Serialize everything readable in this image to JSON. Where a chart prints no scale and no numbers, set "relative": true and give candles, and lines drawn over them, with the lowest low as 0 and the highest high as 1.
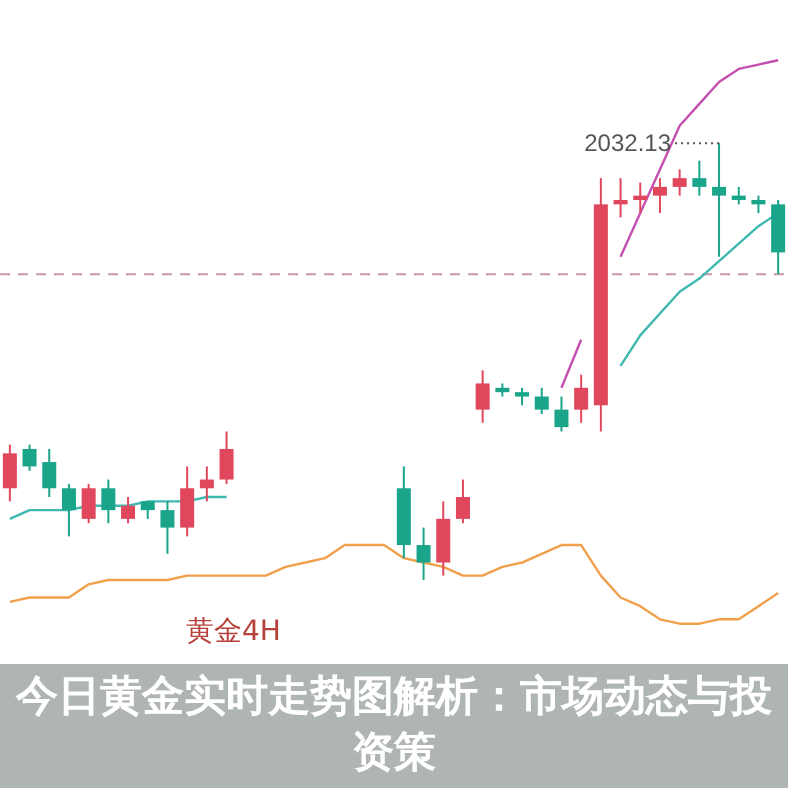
{
  "chart_data": {
    "type": "candlestick",
    "relative": true,
    "title": "今日黄金实时走势图解析：市场动态与投资策",
    "annotations": [
      "2032.13",
      "黄金4H"
    ],
    "categories": [
      null,
      null,
      null,
      null,
      null,
      null,
      null,
      null,
      null,
      null,
      null,
      null,
      null,
      null,
      null,
      null,
      null,
      null,
      null,
      null,
      null,
      null,
      null,
      null,
      null,
      null,
      null,
      null,
      null,
      null,
      null,
      null,
      null,
      null,
      null,
      null,
      null,
      null,
      null,
      null
    ],
    "ohlc": [
      [
        0.21,
        0.31,
        0.18,
        0.29
      ],
      [
        0.3,
        0.31,
        0.25,
        0.26
      ],
      [
        0.27,
        0.3,
        0.19,
        0.21
      ],
      [
        0.21,
        0.22,
        0.1,
        0.16
      ],
      [
        0.14,
        0.22,
        0.13,
        0.21
      ],
      [
        0.21,
        0.23,
        0.13,
        0.16
      ],
      [
        0.14,
        0.19,
        0.13,
        0.17
      ],
      [
        0.18,
        0.18,
        0.14,
        0.16
      ],
      [
        0.16,
        0.18,
        0.06,
        0.12
      ],
      [
        0.12,
        0.26,
        0.1,
        0.21
      ],
      [
        0.21,
        0.26,
        0.18,
        0.23
      ],
      [
        0.23,
        0.34,
        0.22,
        0.3
      ],
      null,
      null,
      null,
      null,
      null,
      null,
      null,
      null,
      [
        0.21,
        0.26,
        0.05,
        0.08
      ],
      [
        0.08,
        0.12,
        0,
        0.04
      ],
      [
        0.04,
        0.18,
        0.01,
        0.14
      ],
      [
        0.14,
        0.23,
        0.13,
        0.19
      ],
      [
        0.39,
        0.48,
        0.36,
        0.45
      ],
      [
        0.44,
        0.45,
        0.42,
        0.43
      ],
      [
        0.43,
        0.44,
        0.4,
        0.42
      ],
      [
        0.42,
        0.44,
        0.38,
        0.39
      ],
      [
        0.39,
        0.42,
        0.34,
        0.35
      ],
      [
        0.39,
        0.47,
        0.36,
        0.44
      ],
      [
        0.4,
        0.92,
        0.34,
        0.86
      ],
      [
        0.86,
        0.92,
        0.83,
        0.87
      ],
      [
        0.87,
        0.91,
        0.84,
        0.88
      ],
      [
        0.88,
        0.92,
        0.84,
        0.9
      ],
      [
        0.9,
        0.94,
        0.88,
        0.92
      ],
      [
        0.92,
        0.96,
        0.88,
        0.9
      ],
      [
        0.9,
        1,
        0.74,
        0.88
      ],
      [
        0.88,
        0.9,
        0.86,
        0.87
      ],
      [
        0.87,
        0.88,
        0.84,
        0.86
      ],
      [
        0.86,
        0.87,
        0.7,
        0.75
      ]
    ],
    "colors": [
      "#e0475c",
      "#1aa58a",
      "#1aa58a",
      "#1aa58a",
      "#e0475c",
      "#1aa58a",
      "#e0475c",
      "#1aa58a",
      "#1aa58a",
      "#e0475c",
      "#e0475c",
      "#e0475c",
      null,
      null,
      null,
      null,
      null,
      null,
      null,
      null,
      "#1aa58a",
      "#1aa58a",
      "#e0475c",
      "#e0475c",
      "#e0475c",
      "#1aa58a",
      "#1aa58a",
      "#1aa58a",
      "#1aa58a",
      "#e0475c",
      "#e0475c",
      "#e0475c",
      "#e0475c",
      "#e0475c",
      "#e0475c",
      "#1aa58a",
      "#1aa58a",
      "#1aa58a",
      "#1aa58a",
      "#1aa58a"
    ],
    "series": [
      {
        "type": "line",
        "color": "#f0a04b",
        "values": [
          -0.05,
          -0.04,
          -0.04,
          -0.04,
          -0.01,
          0,
          0,
          0,
          0,
          0.01,
          0.01,
          0.01,
          0.01,
          0.01,
          0.03,
          0.04,
          0.05,
          0.08,
          0.08,
          0.08,
          0.05,
          0.04,
          0.03,
          0.01,
          0.01,
          0.03,
          0.04,
          0.06,
          0.08,
          0.08,
          0.01,
          -0.04,
          -0.06,
          -0.09,
          -0.1,
          -0.1,
          -0.09,
          -0.09,
          -0.06,
          -0.03
        ]
      },
      {
        "type": "line",
        "color": "#c54fb0",
        "values": [
          null,
          null,
          null,
          null,
          null,
          null,
          null,
          null,
          null,
          null,
          null,
          null,
          null,
          null,
          null,
          null,
          null,
          null,
          null,
          null,
          null,
          null,
          null,
          null,
          null,
          null,
          null,
          null,
          0.44,
          0.55,
          null,
          0.74,
          0.84,
          0.94,
          1.04,
          1.09,
          1.14,
          1.17,
          1.18,
          1.19
        ]
      },
      {
        "type": "line",
        "color": "#3fb8b0",
        "values": [
          0.14,
          0.16,
          0.16,
          0.16,
          0.17,
          0.17,
          0.17,
          0.18,
          0.18,
          0.18,
          0.19,
          0.19,
          null,
          null,
          null,
          null,
          null,
          null,
          null,
          null,
          null,
          null,
          null,
          null,
          null,
          null,
          null,
          null,
          null,
          null,
          null,
          0.49,
          0.56,
          0.61,
          0.66,
          0.69,
          0.73,
          0.77,
          0.81,
          0.84
        ]
      }
    ],
    "ref_lines": [
      {
        "axis": "y",
        "value": 0.7,
        "color": "#c99aa8",
        "line_style": "dashed"
      }
    ]
  }
}
